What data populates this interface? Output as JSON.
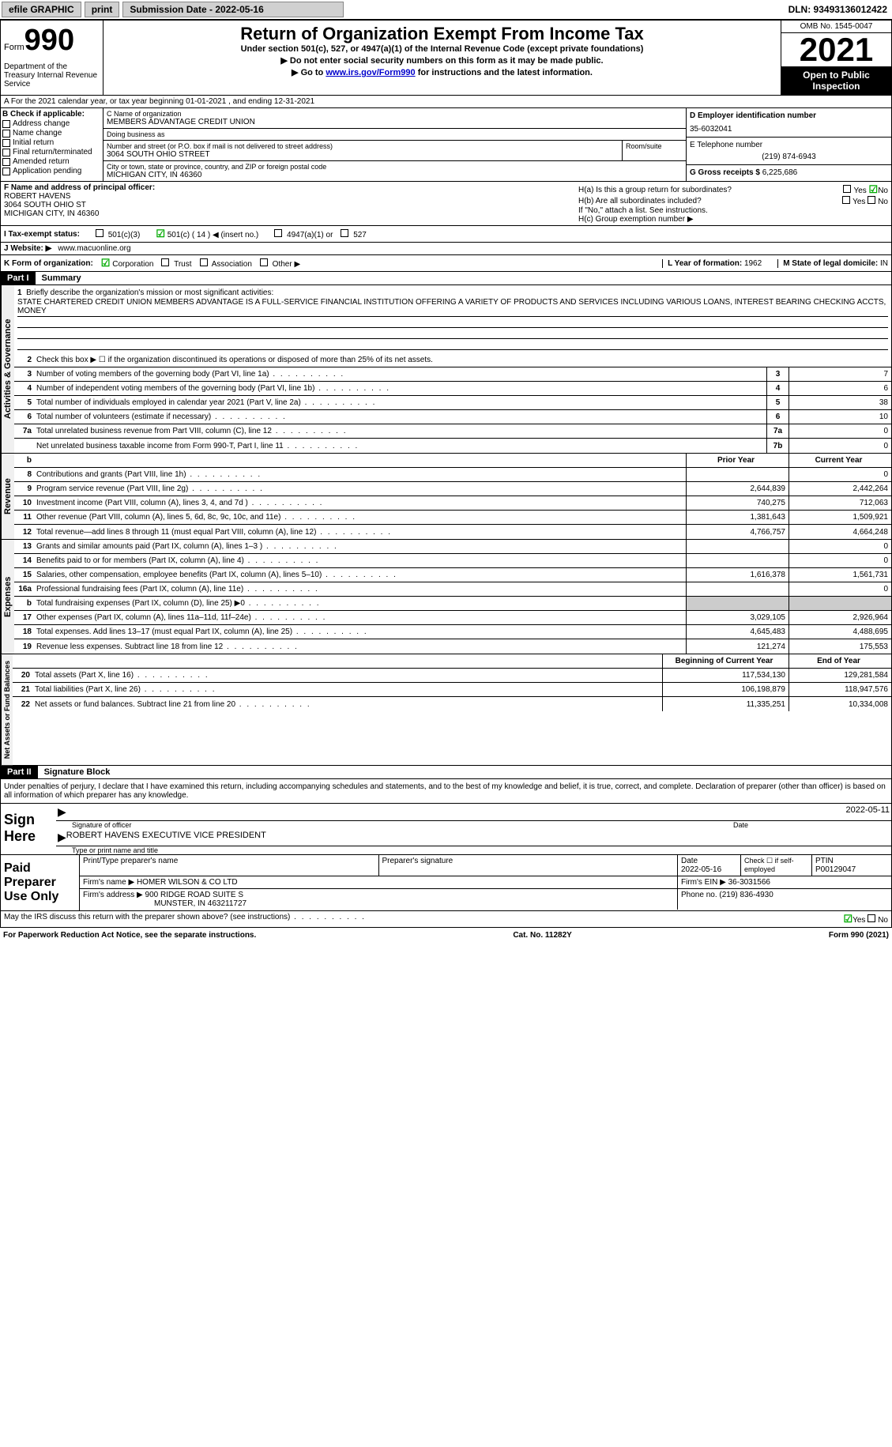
{
  "topbar": {
    "efile": "efile GRAPHIC",
    "print": "print",
    "sub_label": "Submission Date - 2022-05-16",
    "dln": "DLN: 93493136012422"
  },
  "header": {
    "form_label": "Form",
    "form_num": "990",
    "dept": "Department of the Treasury Internal Revenue Service",
    "title": "Return of Organization Exempt From Income Tax",
    "subtitle": "Under section 501(c), 527, or 4947(a)(1) of the Internal Revenue Code (except private foundations)",
    "inst1": "▶ Do not enter social security numbers on this form as it may be made public.",
    "inst2_pre": "▶ Go to ",
    "inst2_link": "www.irs.gov/Form990",
    "inst2_post": " for instructions and the latest information.",
    "omb": "OMB No. 1545-0047",
    "year": "2021",
    "open": "Open to Public Inspection"
  },
  "line_a": "A For the 2021 calendar year, or tax year beginning 01-01-2021    , and ending 12-31-2021",
  "section_b": {
    "label": "B Check if applicable:",
    "items": [
      "Address change",
      "Name change",
      "Initial return",
      "Final return/terminated",
      "Amended return",
      "Application pending"
    ]
  },
  "section_c": {
    "name_label": "C Name of organization",
    "name": "MEMBERS ADVANTAGE CREDIT UNION",
    "dba_label": "Doing business as",
    "dba": "",
    "street_label": "Number and street (or P.O. box if mail is not delivered to street address)",
    "street": "3064 SOUTH OHIO STREET",
    "room_label": "Room/suite",
    "city_label": "City or town, state or province, country, and ZIP or foreign postal code",
    "city": "MICHIGAN CITY, IN  46360"
  },
  "section_d": {
    "ein_label": "D Employer identification number",
    "ein": "35-6032041",
    "tel_label": "E Telephone number",
    "tel": "(219) 874-6943",
    "gross_label": "G Gross receipts $",
    "gross": "6,225,686"
  },
  "section_f": {
    "label": "F Name and address of principal officer:",
    "name": "ROBERT HAVENS",
    "addr1": "3064 SOUTH OHIO ST",
    "addr2": "MICHIGAN CITY, IN  46360"
  },
  "section_h": {
    "ha": "H(a)  Is this a group return for subordinates?",
    "hb": "H(b)  Are all subordinates included?",
    "hb_note": "If \"No,\" attach a list. See instructions.",
    "hc": "H(c)  Group exemption number ▶"
  },
  "line_i": {
    "label": "I   Tax-exempt status:",
    "opts": [
      "501(c)(3)",
      "501(c) ( 14 ) ◀ (insert no.)",
      "4947(a)(1) or",
      "527"
    ]
  },
  "line_j": {
    "label": "J  Website: ▶",
    "value": "www.macuonline.org"
  },
  "line_k": {
    "label": "K Form of organization:",
    "opts": [
      "Corporation",
      "Trust",
      "Association",
      "Other ▶"
    ],
    "l_label": "L Year of formation:",
    "l_val": "1962",
    "m_label": "M State of legal domicile:",
    "m_val": "IN"
  },
  "part1": {
    "header": "Part I",
    "title": "Summary",
    "line1_label": "Briefly describe the organization's mission or most significant activities:",
    "mission": "STATE CHARTERED CREDIT UNION MEMBERS ADVANTAGE IS A FULL-SERVICE FINANCIAL INSTITUTION OFFERING A VARIETY OF PRODUCTS AND SERVICES INCLUDING VARIOUS LOANS, INTEREST BEARING CHECKING ACCTS, MONEY",
    "line2": "Check this box ▶ ☐ if the organization discontinued its operations or disposed of more than 25% of its net assets.",
    "governance_label": "Activities & Governance",
    "revenue_label": "Revenue",
    "expenses_label": "Expenses",
    "netassets_label": "Net Assets or Fund Balances",
    "gov_rows": [
      {
        "n": "3",
        "t": "Number of voting members of the governing body (Part VI, line 1a)",
        "box": "3",
        "v": "7"
      },
      {
        "n": "4",
        "t": "Number of independent voting members of the governing body (Part VI, line 1b)",
        "box": "4",
        "v": "6"
      },
      {
        "n": "5",
        "t": "Total number of individuals employed in calendar year 2021 (Part V, line 2a)",
        "box": "5",
        "v": "38"
      },
      {
        "n": "6",
        "t": "Total number of volunteers (estimate if necessary)",
        "box": "6",
        "v": "10"
      },
      {
        "n": "7a",
        "t": "Total unrelated business revenue from Part VIII, column (C), line 12",
        "box": "7a",
        "v": "0"
      },
      {
        "n": "",
        "t": "Net unrelated business taxable income from Form 990-T, Part I, line 11",
        "box": "7b",
        "v": "0"
      }
    ],
    "col_prior": "Prior Year",
    "col_current": "Current Year",
    "rev_rows": [
      {
        "n": "8",
        "t": "Contributions and grants (Part VIII, line 1h)",
        "p": "",
        "c": "0"
      },
      {
        "n": "9",
        "t": "Program service revenue (Part VIII, line 2g)",
        "p": "2,644,839",
        "c": "2,442,264"
      },
      {
        "n": "10",
        "t": "Investment income (Part VIII, column (A), lines 3, 4, and 7d )",
        "p": "740,275",
        "c": "712,063"
      },
      {
        "n": "11",
        "t": "Other revenue (Part VIII, column (A), lines 5, 6d, 8c, 9c, 10c, and 11e)",
        "p": "1,381,643",
        "c": "1,509,921"
      },
      {
        "n": "12",
        "t": "Total revenue—add lines 8 through 11 (must equal Part VIII, column (A), line 12)",
        "p": "4,766,757",
        "c": "4,664,248"
      }
    ],
    "exp_rows": [
      {
        "n": "13",
        "t": "Grants and similar amounts paid (Part IX, column (A), lines 1–3 )",
        "p": "",
        "c": "0"
      },
      {
        "n": "14",
        "t": "Benefits paid to or for members (Part IX, column (A), line 4)",
        "p": "",
        "c": "0"
      },
      {
        "n": "15",
        "t": "Salaries, other compensation, employee benefits (Part IX, column (A), lines 5–10)",
        "p": "1,616,378",
        "c": "1,561,731"
      },
      {
        "n": "16a",
        "t": "Professional fundraising fees (Part IX, column (A), line 11e)",
        "p": "",
        "c": "0"
      },
      {
        "n": "b",
        "t": "Total fundraising expenses (Part IX, column (D), line 25) ▶0",
        "p": "shaded",
        "c": "shaded"
      },
      {
        "n": "17",
        "t": "Other expenses (Part IX, column (A), lines 11a–11d, 11f–24e)",
        "p": "3,029,105",
        "c": "2,926,964"
      },
      {
        "n": "18",
        "t": "Total expenses. Add lines 13–17 (must equal Part IX, column (A), line 25)",
        "p": "4,645,483",
        "c": "4,488,695"
      },
      {
        "n": "19",
        "t": "Revenue less expenses. Subtract line 18 from line 12",
        "p": "121,274",
        "c": "175,553"
      }
    ],
    "col_begin": "Beginning of Current Year",
    "col_end": "End of Year",
    "net_rows": [
      {
        "n": "20",
        "t": "Total assets (Part X, line 16)",
        "p": "117,534,130",
        "c": "129,281,584"
      },
      {
        "n": "21",
        "t": "Total liabilities (Part X, line 26)",
        "p": "106,198,879",
        "c": "118,947,576"
      },
      {
        "n": "22",
        "t": "Net assets or fund balances. Subtract line 21 from line 20",
        "p": "11,335,251",
        "c": "10,334,008"
      }
    ]
  },
  "part2": {
    "header": "Part II",
    "title": "Signature Block",
    "perjury": "Under penalties of perjury, I declare that I have examined this return, including accompanying schedules and statements, and to the best of my knowledge and belief, it is true, correct, and complete. Declaration of preparer (other than officer) is based on all information of which preparer has any knowledge.",
    "sign_here": "Sign Here",
    "sig_date": "2022-05-11",
    "sig_officer_label": "Signature of officer",
    "date_label": "Date",
    "officer_name": "ROBERT HAVENS  EXECUTIVE VICE PRESIDENT",
    "type_label": "Type or print name and title",
    "paid_label": "Paid Preparer Use Only",
    "prep_name_label": "Print/Type preparer's name",
    "prep_sig_label": "Preparer's signature",
    "prep_date_label": "Date",
    "prep_date": "2022-05-16",
    "check_self": "Check ☐ if self-employed",
    "ptin_label": "PTIN",
    "ptin": "P00129047",
    "firm_name_label": "Firm's name    ▶",
    "firm_name": "HOMER WILSON & CO LTD",
    "firm_ein_label": "Firm's EIN ▶",
    "firm_ein": "36-3031566",
    "firm_addr_label": "Firm's address ▶",
    "firm_addr1": "900 RIDGE ROAD SUITE S",
    "firm_addr2": "MUNSTER, IN  463211727",
    "phone_label": "Phone no.",
    "phone": "(219) 836-4930",
    "discuss": "May the IRS discuss this return with the preparer shown above? (see instructions)"
  },
  "footer": {
    "pra": "For Paperwork Reduction Act Notice, see the separate instructions.",
    "cat": "Cat. No. 11282Y",
    "form": "Form 990 (2021)"
  }
}
